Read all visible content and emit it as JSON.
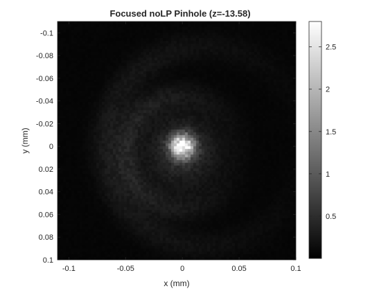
{
  "chart_data": {
    "type": "heatmap",
    "title": "Focused noLP Pinhole (z=-13.58)",
    "xlabel": "x (mm)",
    "ylabel": "y (mm)",
    "xlim": [
      -0.11,
      0.1
    ],
    "ylim": [
      -0.11,
      0.1
    ],
    "y_axis_direction": "reverse",
    "xticks": [
      -0.1,
      -0.05,
      0,
      0.05,
      0.1
    ],
    "xtick_labels": [
      "-0.1",
      "-0.05",
      "0",
      "0.05",
      "0.1"
    ],
    "yticks": [
      -0.1,
      -0.08,
      -0.06,
      -0.04,
      -0.02,
      0,
      0.02,
      0.04,
      0.06,
      0.08,
      0.1
    ],
    "ytick_labels": [
      "-0.1",
      "-0.08",
      "-0.06",
      "-0.04",
      "-0.02",
      "0",
      "0.02",
      "0.04",
      "0.06",
      "0.08",
      "0.1"
    ],
    "colormap": "gray",
    "colorbar": {
      "range": [
        0,
        2.8
      ],
      "ticks": [
        0.5,
        1,
        1.5,
        2,
        2.5
      ],
      "tick_labels": [
        "0.5",
        "1",
        "1.5",
        "2",
        "2.5"
      ]
    },
    "intensity_model": {
      "central_peak": {
        "x": 0,
        "y": 0,
        "amplitude": 2.75,
        "sigma_mm": 0.007
      },
      "halo": {
        "x": 0,
        "y": 0.005,
        "amplitude": 0.45,
        "sigma_mm": 0.022
      },
      "rings": [
        {
          "center_x": 0.0,
          "center_y": 0.005,
          "radius_mm": 0.05,
          "width_mm": 0.008,
          "amplitude": 0.3
        },
        {
          "center_x": 0.02,
          "center_y": 0.0,
          "radius_mm": 0.088,
          "width_mm": 0.009,
          "amplitude": 0.2
        }
      ],
      "background": 0.06
    }
  }
}
